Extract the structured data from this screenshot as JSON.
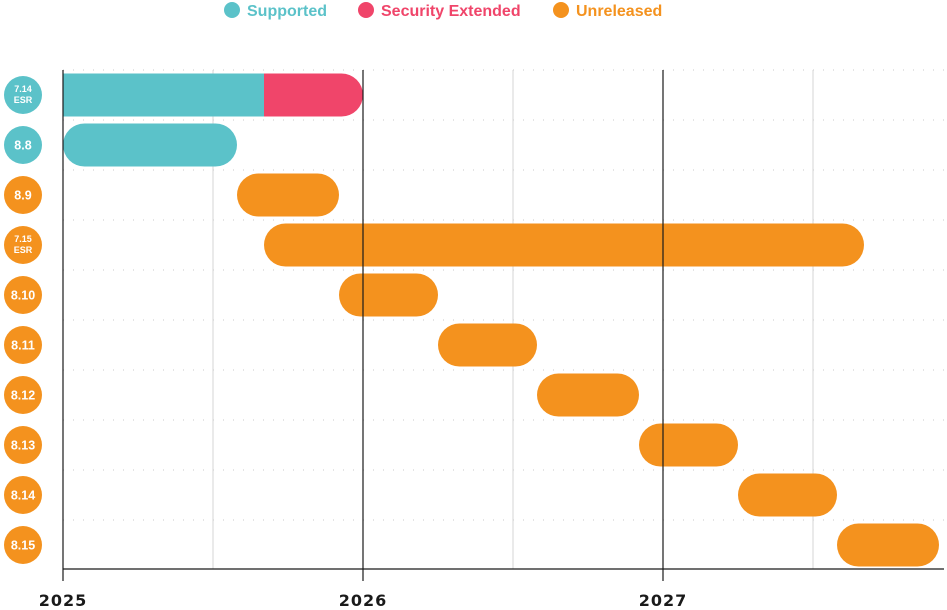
{
  "chart_data": {
    "type": "gantt",
    "title": "",
    "colors": {
      "Supported": "#5bc2c9",
      "Security Extended": "#f0456a",
      "Unreleased": "#f4921e"
    },
    "legend": {
      "placement": "top",
      "items": [
        {
          "label": "Supported",
          "color": "#5bc2c9"
        },
        {
          "label": "Security Extended",
          "color": "#f0456a"
        },
        {
          "label": "Unreleased",
          "color": "#f4921e"
        }
      ]
    },
    "x_axis": {
      "type": "time",
      "range": [
        2025.0,
        2027.94
      ],
      "tick_labels": [
        "2025",
        "2026",
        "2027"
      ],
      "major_ticks": [
        2025,
        2026,
        2027
      ],
      "minor_ticks": [
        2025.5,
        2026.5,
        2027.5
      ]
    },
    "grid": true,
    "rows": [
      {
        "name": "7.14",
        "sub": "ESR",
        "badge": "Supported",
        "segments": [
          {
            "status": "Supported",
            "start": 2025.0,
            "end": 2025.67
          },
          {
            "status": "Security Extended",
            "start": 2025.67,
            "end": 2026.0
          }
        ]
      },
      {
        "name": "8.8",
        "sub": "",
        "badge": "Supported",
        "segments": [
          {
            "status": "Supported",
            "start": 2025.0,
            "end": 2025.58
          }
        ]
      },
      {
        "name": "8.9",
        "sub": "",
        "badge": "Unreleased",
        "segments": [
          {
            "status": "Unreleased",
            "start": 2025.58,
            "end": 2025.92
          }
        ]
      },
      {
        "name": "7.15",
        "sub": "ESR",
        "badge": "Unreleased",
        "segments": [
          {
            "status": "Unreleased",
            "start": 2025.67,
            "end": 2027.67
          }
        ]
      },
      {
        "name": "8.10",
        "sub": "",
        "badge": "Unreleased",
        "segments": [
          {
            "status": "Unreleased",
            "start": 2025.92,
            "end": 2026.25
          }
        ]
      },
      {
        "name": "8.11",
        "sub": "",
        "badge": "Unreleased",
        "segments": [
          {
            "status": "Unreleased",
            "start": 2026.25,
            "end": 2026.58
          }
        ]
      },
      {
        "name": "8.12",
        "sub": "",
        "badge": "Unreleased",
        "segments": [
          {
            "status": "Unreleased",
            "start": 2026.58,
            "end": 2026.92
          }
        ]
      },
      {
        "name": "8.13",
        "sub": "",
        "badge": "Unreleased",
        "segments": [
          {
            "status": "Unreleased",
            "start": 2026.92,
            "end": 2027.25
          }
        ]
      },
      {
        "name": "8.14",
        "sub": "",
        "badge": "Unreleased",
        "segments": [
          {
            "status": "Unreleased",
            "start": 2027.25,
            "end": 2027.58
          }
        ]
      },
      {
        "name": "8.15",
        "sub": "",
        "badge": "Unreleased",
        "segments": [
          {
            "status": "Unreleased",
            "start": 2027.58,
            "end": 2027.92
          }
        ]
      }
    ]
  }
}
